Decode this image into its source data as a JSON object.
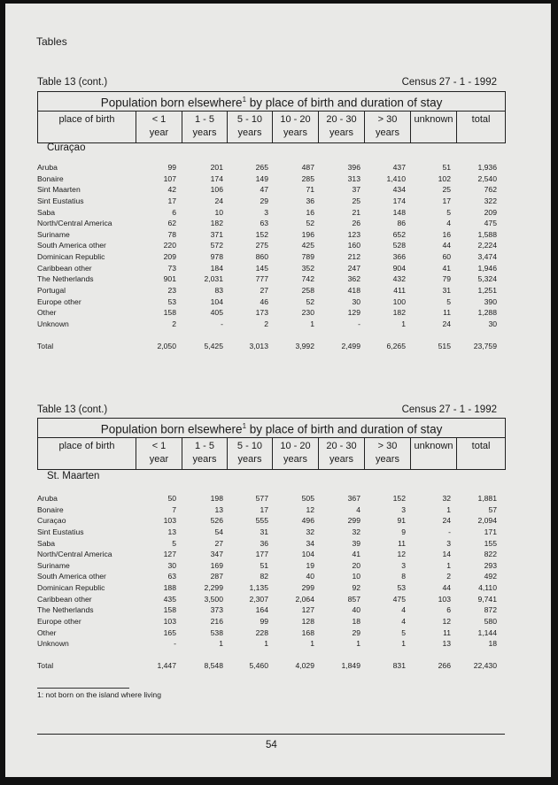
{
  "header": {
    "section": "Tables"
  },
  "columns": [
    "place of birth",
    "< 1\nyear",
    "1 - 5\nyears",
    "5 - 10\nyears",
    "10 - 20\nyears",
    "20 - 30\nyears",
    ">  30\nyears",
    "unknown",
    "total"
  ],
  "tables": [
    {
      "label": "Table 13 (cont.)",
      "census": "Census 27 - 1 - 1992",
      "title": "Population born elsewhere",
      "title_sup": "1",
      "title_rest": " by place of birth and duration of stay",
      "region": "Curaçao",
      "rows": [
        [
          "Aruba",
          "99",
          "201",
          "265",
          "487",
          "396",
          "437",
          "51",
          "1,936"
        ],
        [
          "Bonaire",
          "107",
          "174",
          "149",
          "285",
          "313",
          "1,410",
          "102",
          "2,540"
        ],
        [
          "Sint Maarten",
          "42",
          "106",
          "47",
          "71",
          "37",
          "434",
          "25",
          "762"
        ],
        [
          "Sint Eustatius",
          "17",
          "24",
          "29",
          "36",
          "25",
          "174",
          "17",
          "322"
        ],
        [
          "Saba",
          "6",
          "10",
          "3",
          "16",
          "21",
          "148",
          "5",
          "209"
        ],
        [
          "North/Central America",
          "62",
          "182",
          "63",
          "52",
          "26",
          "86",
          "4",
          "475"
        ],
        [
          "Suriname",
          "78",
          "371",
          "152",
          "196",
          "123",
          "652",
          "16",
          "1,588"
        ],
        [
          "South America other",
          "220",
          "572",
          "275",
          "425",
          "160",
          "528",
          "44",
          "2,224"
        ],
        [
          "Dominican Republic",
          "209",
          "978",
          "860",
          "789",
          "212",
          "366",
          "60",
          "3,474"
        ],
        [
          "Caribbean other",
          "73",
          "184",
          "145",
          "352",
          "247",
          "904",
          "41",
          "1,946"
        ],
        [
          "The Netherlands",
          "901",
          "2,031",
          "777",
          "742",
          "362",
          "432",
          "79",
          "5,324"
        ],
        [
          "Portugal",
          "23",
          "83",
          "27",
          "258",
          "418",
          "411",
          "31",
          "1,251"
        ],
        [
          "Europe other",
          "53",
          "104",
          "46",
          "52",
          "30",
          "100",
          "5",
          "390"
        ],
        [
          "Other",
          "158",
          "405",
          "173",
          "230",
          "129",
          "182",
          "11",
          "1,288"
        ],
        [
          "Unknown",
          "2",
          "-",
          "2",
          "1",
          "-",
          "1",
          "24",
          "30"
        ]
      ],
      "total": [
        "Total",
        "2,050",
        "5,425",
        "3,013",
        "3,992",
        "2,499",
        "6,265",
        "515",
        "23,759"
      ]
    },
    {
      "label": "Table 13 (cont.)",
      "census": "Census 27 - 1 - 1992",
      "title": "Population born elsewhere",
      "title_sup": "1",
      "title_rest": " by place of birth and duration of stay",
      "region": "St. Maarten",
      "rows": [
        [
          "Aruba",
          "50",
          "198",
          "577",
          "505",
          "367",
          "152",
          "32",
          "1,881"
        ],
        [
          "Bonaire",
          "7",
          "13",
          "17",
          "12",
          "4",
          "3",
          "1",
          "57"
        ],
        [
          "Curaçao",
          "103",
          "526",
          "555",
          "496",
          "299",
          "91",
          "24",
          "2,094"
        ],
        [
          "Sint Eustatius",
          "13",
          "54",
          "31",
          "32",
          "32",
          "9",
          "-",
          "171"
        ],
        [
          "Saba",
          "5",
          "27",
          "36",
          "34",
          "39",
          "11",
          "3",
          "155"
        ],
        [
          "North/Central America",
          "127",
          "347",
          "177",
          "104",
          "41",
          "12",
          "14",
          "822"
        ],
        [
          "Suriname",
          "30",
          "169",
          "51",
          "19",
          "20",
          "3",
          "1",
          "293"
        ],
        [
          "South America other",
          "63",
          "287",
          "82",
          "40",
          "10",
          "8",
          "2",
          "492"
        ],
        [
          "Dominican Republic",
          "188",
          "2,299",
          "1,135",
          "299",
          "92",
          "53",
          "44",
          "4,110"
        ],
        [
          "Caribbean other",
          "435",
          "3,500",
          "2,307",
          "2,064",
          "857",
          "475",
          "103",
          "9,741"
        ],
        [
          "The Netherlands",
          "158",
          "373",
          "164",
          "127",
          "40",
          "4",
          "6",
          "872"
        ],
        [
          "Europe other",
          "103",
          "216",
          "99",
          "128",
          "18",
          "4",
          "12",
          "580"
        ],
        [
          "Other",
          "165",
          "538",
          "228",
          "168",
          "29",
          "5",
          "11",
          "1,144"
        ],
        [
          "Unknown",
          "-",
          "1",
          "1",
          "1",
          "1",
          "1",
          "13",
          "18"
        ]
      ],
      "total": [
        "Total",
        "1,447",
        "8,548",
        "5,460",
        "4,029",
        "1,849",
        "831",
        "266",
        "22,430"
      ]
    }
  ],
  "footnote": "1: not born on the island where living",
  "page_number": "54"
}
